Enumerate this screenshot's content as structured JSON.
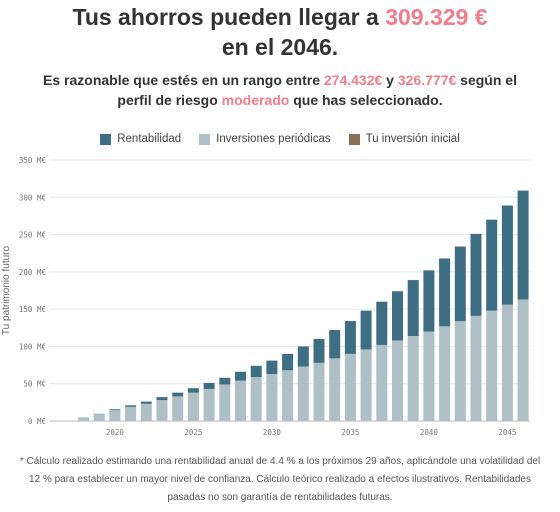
{
  "header": {
    "headline_pre": "Tus ahorros pueden llegar a ",
    "headline_amount": "309.329 €",
    "headline_post": "en el 2046.",
    "sub_pre": "Es razonable que estés en un rango entre ",
    "sub_low": "274.432€",
    "sub_mid": " y ",
    "sub_high": "326.777€",
    "sub_post1": " según el perfil de riesgo ",
    "sub_profile": "moderado",
    "sub_post2": " que has seleccionado."
  },
  "colors": {
    "accent": "#f07d8c",
    "rentabilidad": "#3e6e84",
    "inversiones": "#aebfc5",
    "inicial": "#8b6f57"
  },
  "footnote": {
    "line1": "* Cálculo realizado estimando una rentabilidad anual de 4.4 % a los próximos 29 años, aplicándole una volatilidad del",
    "line2": "12 % para establecer un mayor nivel de confianza. Cálculo teórico realizado a efectos ilustrativos. Rentabilidades",
    "line3": "pasadas no son garantía de rentabilidades futuras."
  },
  "chart_data": {
    "type": "bar",
    "stacked": true,
    "ylabel": "Tu patrimonio futuro",
    "ylim": [
      0,
      350
    ],
    "y_ticks": [
      "0 M€",
      "50 M€",
      "100 M€",
      "150 M€",
      "200 M€",
      "250 M€",
      "300 M€",
      "350 M€"
    ],
    "y_tick_values": [
      0,
      50,
      100,
      150,
      200,
      250,
      300,
      350
    ],
    "x_ticks": [
      "2020",
      "2025",
      "2030",
      "2035",
      "2040",
      "2045"
    ],
    "x_tick_values": [
      2020,
      2025,
      2030,
      2035,
      2040,
      2045
    ],
    "categories": [
      2018,
      2019,
      2020,
      2021,
      2022,
      2023,
      2024,
      2025,
      2026,
      2027,
      2028,
      2029,
      2030,
      2031,
      2032,
      2033,
      2034,
      2035,
      2036,
      2037,
      2038,
      2039,
      2040,
      2041,
      2042,
      2043,
      2044,
      2045,
      2046
    ],
    "legend_position": "top",
    "grid": true,
    "series": [
      {
        "name": "Tu inversión inicial",
        "color_key": "inicial",
        "values": [
          0,
          0,
          0,
          0,
          0,
          0,
          0,
          0,
          0,
          0,
          0,
          0,
          0,
          0,
          0,
          0,
          0,
          0,
          0,
          0,
          0,
          0,
          0,
          0,
          0,
          0,
          0,
          0,
          0
        ]
      },
      {
        "name": "Inversiones periódicas",
        "color_key": "inversiones",
        "values": [
          5,
          10,
          15,
          19,
          23,
          28,
          33,
          38,
          43,
          49,
          54,
          59,
          63,
          68,
          73,
          78,
          84,
          90,
          96,
          102,
          108,
          114,
          120,
          127,
          134,
          141,
          148,
          156,
          163
        ]
      },
      {
        "name": "Rentabilidad",
        "color_key": "rentabilidad",
        "values": [
          0,
          0,
          1,
          2,
          3,
          4,
          5,
          6,
          8,
          9,
          12,
          15,
          18,
          22,
          27,
          32,
          38,
          44,
          52,
          58,
          66,
          75,
          82,
          91,
          100,
          110,
          122,
          133,
          146
        ]
      }
    ],
    "legend_order": [
      "Rentabilidad",
      "Inversiones periódicas",
      "Tu inversión inicial"
    ]
  }
}
